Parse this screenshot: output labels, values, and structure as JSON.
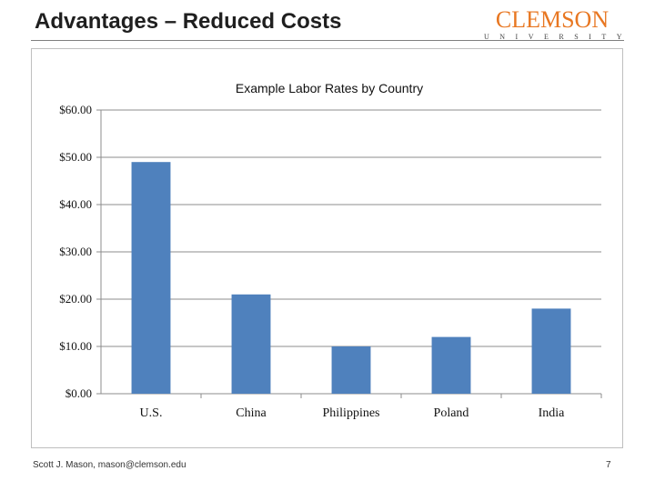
{
  "slide": {
    "title": "Advantages – Reduced Costs",
    "logo_word": "CLEMSON",
    "logo_sub": "UNIVERSITY",
    "footer_left": "Scott J. Mason, mason@clemson.edu",
    "footer_right": "7"
  },
  "chart_data": {
    "type": "bar",
    "title": "Example Labor Rates by Country",
    "categories": [
      "U.S.",
      "China",
      "Philippines",
      "Poland",
      "India"
    ],
    "values": [
      49.0,
      21.0,
      10.0,
      12.0,
      18.0
    ],
    "ylim": [
      0,
      60
    ],
    "yticks": [
      0,
      10,
      20,
      30,
      40,
      50,
      60
    ],
    "ytick_labels": [
      "$0.00",
      "$10.00",
      "$20.00",
      "$30.00",
      "$40.00",
      "$50.00",
      "$60.00"
    ],
    "xlabel": "",
    "ylabel": "",
    "grid": true,
    "bar_color": "#4f81bd",
    "grid_color": "#8c8c8c"
  }
}
